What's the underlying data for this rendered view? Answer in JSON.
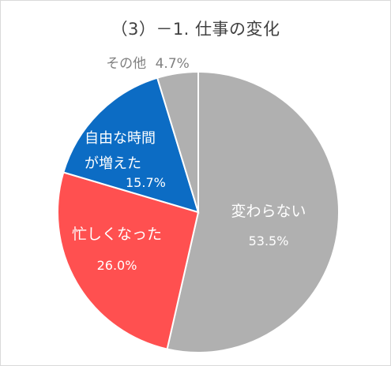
{
  "chart_data": {
    "type": "pie",
    "title": "（3）－1. 仕事の変化",
    "categories": [
      "変わらない",
      "忙しくなった",
      "自由な時間が増えた",
      "その他"
    ],
    "values": [
      53.5,
      26.0,
      15.7,
      4.7
    ],
    "value_labels": [
      "53.5%",
      "26.0%",
      "15.7%",
      "4.7%"
    ],
    "colors": [
      "#b0b0b0",
      "#ff5050",
      "#0c6cc4",
      "#b0b0b0"
    ],
    "start_angle_deg": 0,
    "direction": "clockwise",
    "legend": "none"
  }
}
